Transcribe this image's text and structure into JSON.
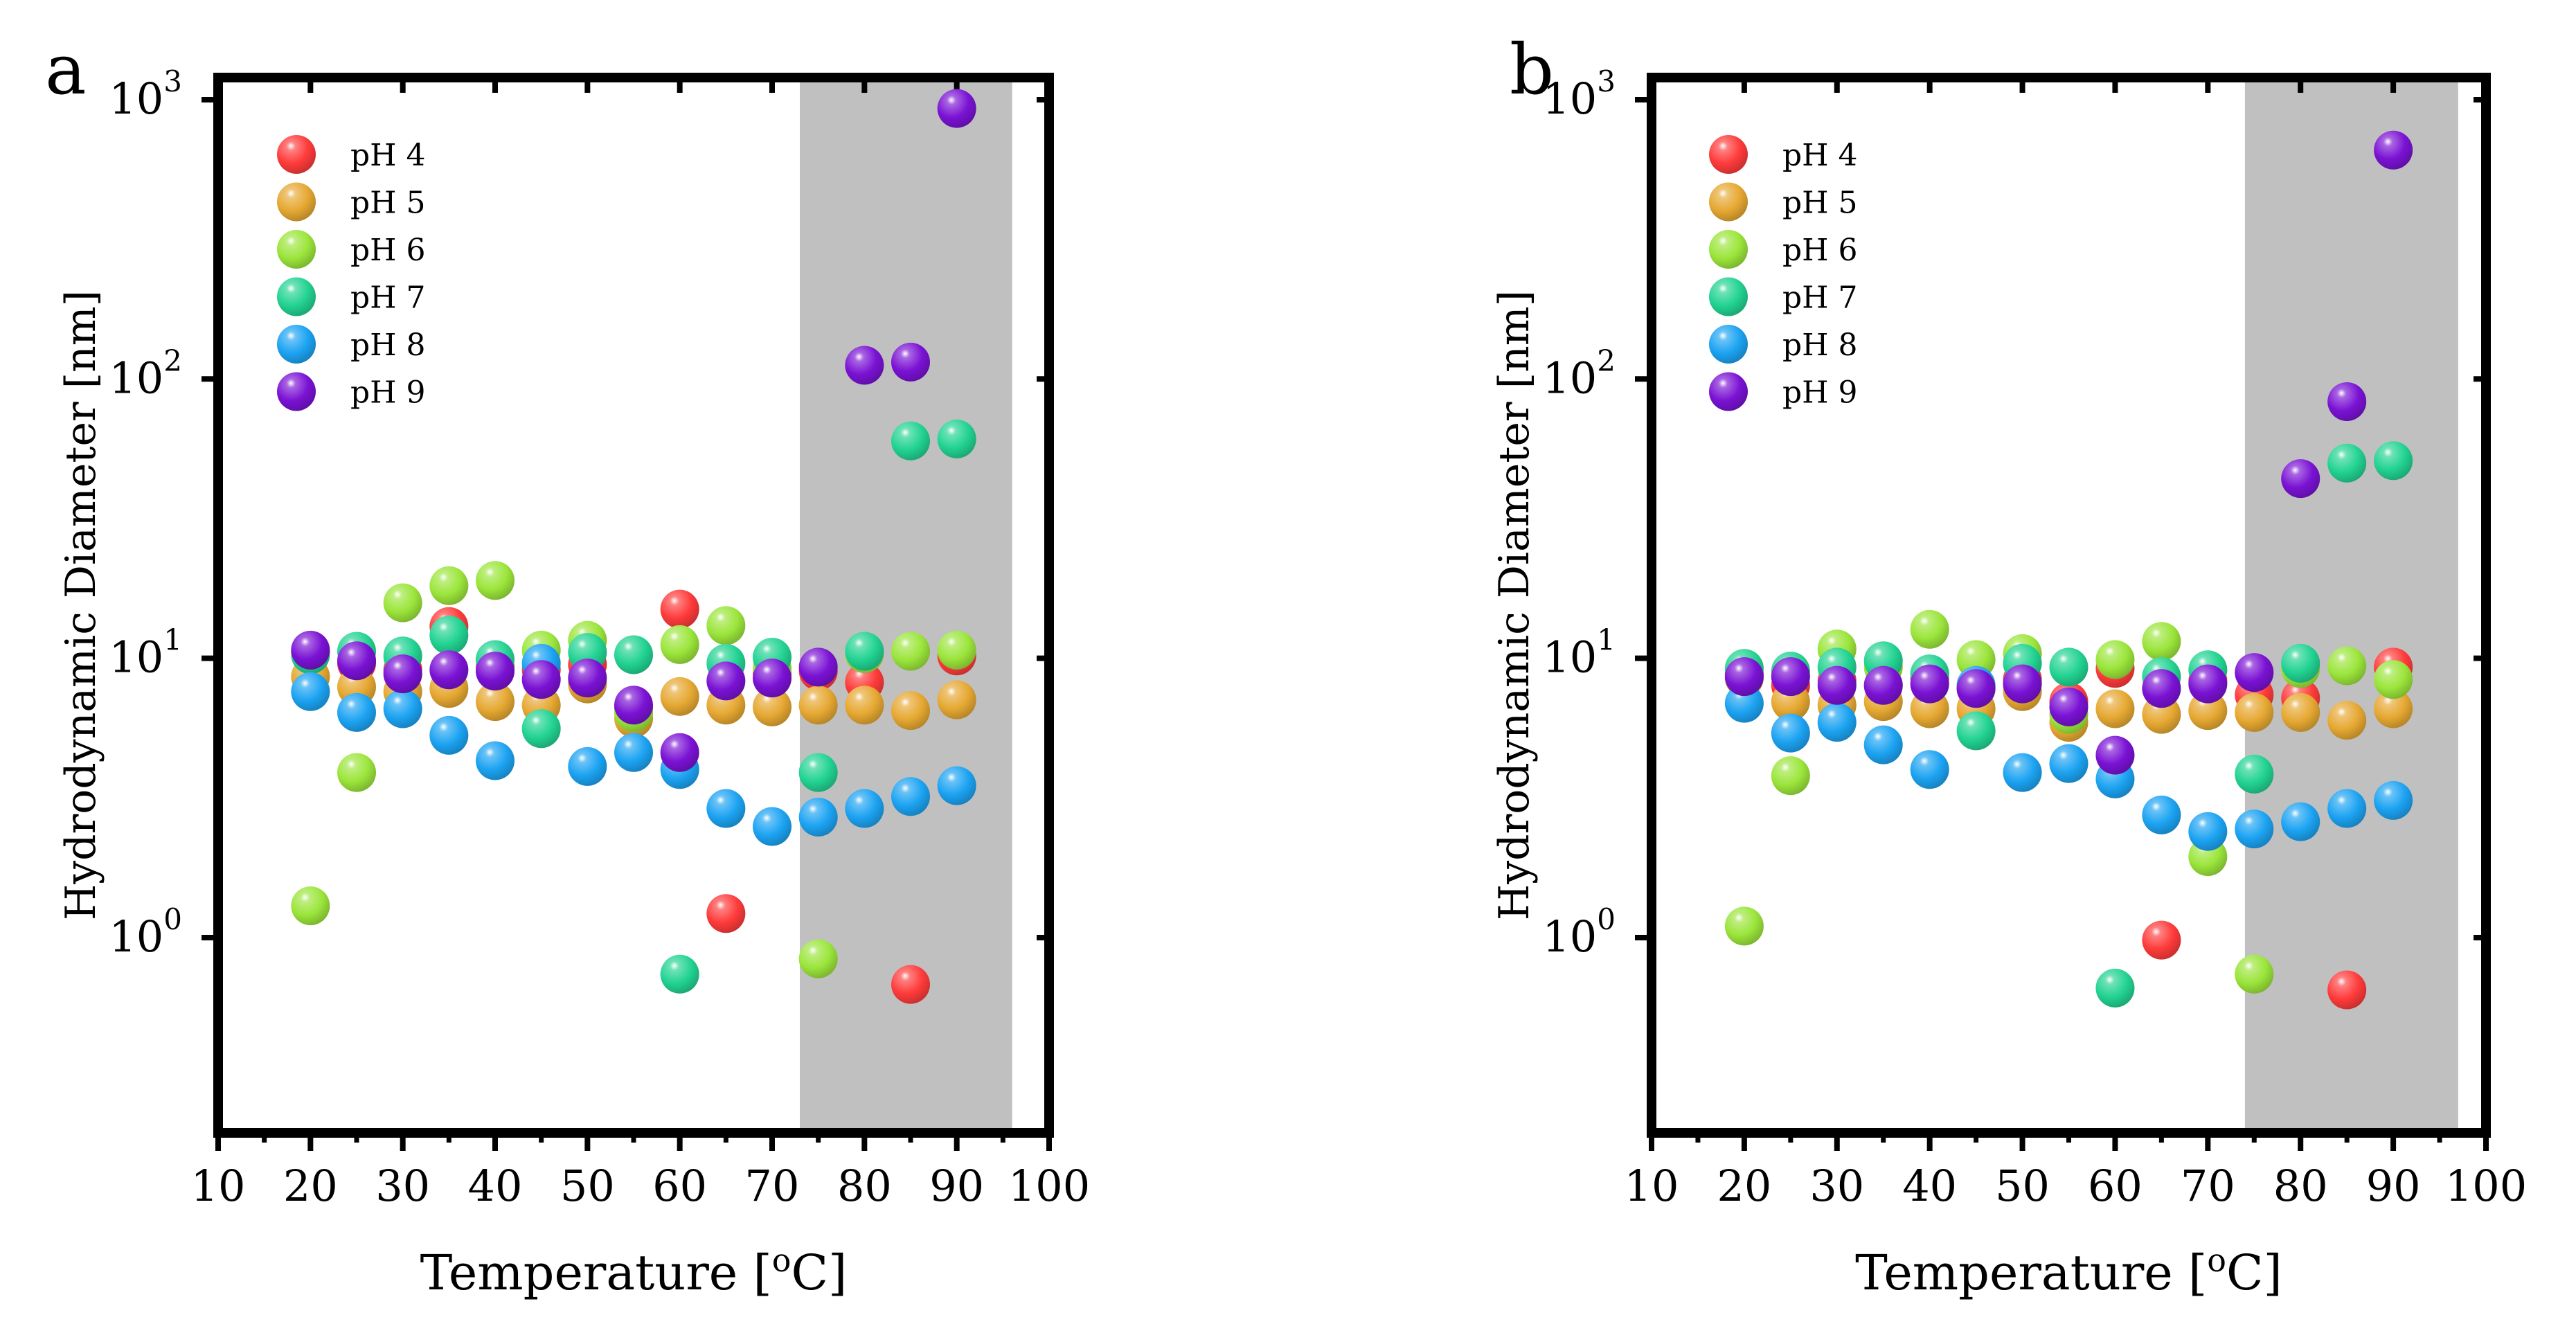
{
  "chart_data": [
    {
      "type": "scatter",
      "panel_label": "a",
      "xlabel": "Temperature [",
      "xlabel_sup": "o",
      "xlabel_unit": "C]",
      "ylabel": "Hydrodynamic Diameter [nm]",
      "xlim": [
        10,
        100
      ],
      "ylim": [
        0.2,
        1200
      ],
      "yscale": "log",
      "xticks": [
        10,
        20,
        30,
        40,
        50,
        60,
        70,
        80,
        90,
        100
      ],
      "yticks": [
        {
          "value": 1,
          "base": "10",
          "exp": "0"
        },
        {
          "value": 10,
          "base": "10",
          "exp": "1"
        },
        {
          "value": 100,
          "base": "10",
          "exp": "2"
        },
        {
          "value": 1000,
          "base": "10",
          "exp": "3"
        }
      ],
      "shaded_region": {
        "x_start": 73,
        "x_end": 96,
        "color": "#c0c0c0"
      },
      "legend_position": "top-left",
      "series": [
        {
          "name": "pH 4",
          "color": "#ff3b3b",
          "points": [
            [
              20,
              10.5
            ],
            [
              25,
              9.6
            ],
            [
              30,
              9.1
            ],
            [
              35,
              13
            ],
            [
              40,
              9.3
            ],
            [
              45,
              9.1
            ],
            [
              50,
              9.5
            ],
            [
              55,
              6.6
            ],
            [
              60,
              15
            ],
            [
              65,
              1.22
            ],
            [
              70,
              8.8
            ],
            [
              75,
              9.0
            ],
            [
              80,
              8.2
            ],
            [
              85,
              0.68
            ],
            [
              90,
              10.2
            ]
          ]
        },
        {
          "name": "pH 5",
          "color": "#e6a832",
          "points": [
            [
              20,
              8.6
            ],
            [
              25,
              7.9
            ],
            [
              30,
              7.6
            ],
            [
              35,
              7.8
            ],
            [
              40,
              7.0
            ],
            [
              45,
              6.8
            ],
            [
              50,
              8.1
            ],
            [
              55,
              6.1
            ],
            [
              60,
              7.3
            ],
            [
              65,
              6.8
            ],
            [
              70,
              6.7
            ],
            [
              75,
              6.8
            ],
            [
              80,
              6.8
            ],
            [
              85,
              6.5
            ],
            [
              90,
              7.1
            ]
          ]
        },
        {
          "name": "pH 6",
          "color": "#9be53b",
          "points": [
            [
              20,
              1.3
            ],
            [
              25,
              3.9
            ],
            [
              30,
              15.8
            ],
            [
              35,
              18.2
            ],
            [
              40,
              19
            ],
            [
              45,
              10.7
            ],
            [
              50,
              11.6
            ],
            [
              55,
              6.4
            ],
            [
              60,
              11.2
            ],
            [
              65,
              13.1
            ],
            [
              70,
              9.2
            ],
            [
              75,
              0.84
            ],
            [
              80,
              10.4
            ],
            [
              85,
              10.6
            ],
            [
              90,
              10.7
            ]
          ]
        },
        {
          "name": "pH 7",
          "color": "#22d392",
          "points": [
            [
              20,
              10.3
            ],
            [
              25,
              10.6
            ],
            [
              30,
              10.2
            ],
            [
              35,
              12.1
            ],
            [
              40,
              9.9
            ],
            [
              45,
              5.6
            ],
            [
              50,
              10.5
            ],
            [
              55,
              10.3
            ],
            [
              60,
              0.74
            ],
            [
              65,
              9.6
            ],
            [
              70,
              10.1
            ],
            [
              75,
              3.9
            ],
            [
              80,
              10.6
            ],
            [
              85,
              60
            ],
            [
              90,
              61
            ]
          ]
        },
        {
          "name": "pH 8",
          "color": "#1ca3f2",
          "points": [
            [
              20,
              7.6
            ],
            [
              25,
              6.4
            ],
            [
              30,
              6.6
            ],
            [
              35,
              5.3
            ],
            [
              40,
              4.3
            ],
            [
              45,
              9.6
            ],
            [
              50,
              4.1
            ],
            [
              55,
              4.6
            ],
            [
              60,
              4.0
            ],
            [
              65,
              2.9
            ],
            [
              70,
              2.5
            ],
            [
              75,
              2.7
            ],
            [
              80,
              2.9
            ],
            [
              85,
              3.2
            ],
            [
              90,
              3.5
            ]
          ]
        },
        {
          "name": "pH 9",
          "color": "#7a12d4",
          "points": [
            [
              20,
              10.7
            ],
            [
              25,
              9.8
            ],
            [
              30,
              8.8
            ],
            [
              35,
              9.1
            ],
            [
              40,
              9.0
            ],
            [
              45,
              8.4
            ],
            [
              50,
              8.5
            ],
            [
              55,
              6.8
            ],
            [
              60,
              4.6
            ],
            [
              65,
              8.3
            ],
            [
              70,
              8.5
            ],
            [
              75,
              9.3
            ],
            [
              80,
              112
            ],
            [
              85,
              115
            ],
            [
              90,
              930
            ]
          ]
        }
      ]
    },
    {
      "type": "scatter",
      "panel_label": "b",
      "xlabel": "Temperature [",
      "xlabel_sup": "o",
      "xlabel_unit": "C]",
      "ylabel": "Hydrodynamic Diameter [nm]",
      "xlim": [
        10,
        100
      ],
      "ylim": [
        0.2,
        1200
      ],
      "yscale": "log",
      "xticks": [
        10,
        20,
        30,
        40,
        50,
        60,
        70,
        80,
        90,
        100
      ],
      "yticks": [
        {
          "value": 1,
          "base": "10",
          "exp": "0"
        },
        {
          "value": 10,
          "base": "10",
          "exp": "1"
        },
        {
          "value": 100,
          "base": "10",
          "exp": "2"
        },
        {
          "value": 1000,
          "base": "10",
          "exp": "3"
        }
      ],
      "shaded_region": {
        "x_start": 74,
        "x_end": 97,
        "color": "#c0c0c0"
      },
      "legend_position": "top-left",
      "series": [
        {
          "name": "pH 4",
          "color": "#ff3b3b",
          "points": [
            [
              20,
              8.8
            ],
            [
              25,
              8.0
            ],
            [
              30,
              8.3
            ],
            [
              35,
              8.0
            ],
            [
              40,
              8.5
            ],
            [
              45,
              7.8
            ],
            [
              50,
              8.4
            ],
            [
              55,
              7.0
            ],
            [
              60,
              9.2
            ],
            [
              65,
              0.98
            ],
            [
              70,
              8.3
            ],
            [
              75,
              7.4
            ],
            [
              80,
              7.2
            ],
            [
              85,
              0.65
            ],
            [
              90,
              9.3
            ]
          ]
        },
        {
          "name": "pH 5",
          "color": "#e6a832",
          "points": [
            [
              20,
              8.5
            ],
            [
              25,
              7.0
            ],
            [
              30,
              6.8
            ],
            [
              35,
              7.0
            ],
            [
              40,
              6.6
            ],
            [
              45,
              6.6
            ],
            [
              50,
              7.6
            ],
            [
              55,
              5.9
            ],
            [
              60,
              6.6
            ],
            [
              65,
              6.3
            ],
            [
              70,
              6.5
            ],
            [
              75,
              6.4
            ],
            [
              80,
              6.4
            ],
            [
              85,
              6.0
            ],
            [
              90,
              6.6
            ]
          ]
        },
        {
          "name": "pH 6",
          "color": "#9be53b",
          "points": [
            [
              20,
              1.1
            ],
            [
              25,
              3.8
            ],
            [
              30,
              10.8
            ],
            [
              35,
              9.3
            ],
            [
              40,
              12.7
            ],
            [
              45,
              9.9
            ],
            [
              50,
              10.4
            ],
            [
              55,
              6.3
            ],
            [
              60,
              9.9
            ],
            [
              65,
              11.5
            ],
            [
              70,
              1.95
            ],
            [
              75,
              0.74
            ],
            [
              80,
              9.2
            ],
            [
              85,
              9.4
            ],
            [
              90,
              8.4
            ]
          ]
        },
        {
          "name": "pH 7",
          "color": "#22d392",
          "points": [
            [
              20,
              9.2
            ],
            [
              25,
              9.0
            ],
            [
              30,
              9.3
            ],
            [
              35,
              9.8
            ],
            [
              40,
              8.8
            ],
            [
              45,
              5.5
            ],
            [
              50,
              9.6
            ],
            [
              55,
              9.3
            ],
            [
              60,
              0.66
            ],
            [
              65,
              8.6
            ],
            [
              70,
              9.1
            ],
            [
              75,
              3.85
            ],
            [
              80,
              9.6
            ],
            [
              85,
              50
            ],
            [
              90,
              51
            ]
          ]
        },
        {
          "name": "pH 8",
          "color": "#1ca3f2",
          "points": [
            [
              20,
              6.9
            ],
            [
              25,
              5.4
            ],
            [
              30,
              5.9
            ],
            [
              35,
              4.9
            ],
            [
              40,
              4.0
            ],
            [
              45,
              8.0
            ],
            [
              50,
              3.9
            ],
            [
              55,
              4.2
            ],
            [
              60,
              3.7
            ],
            [
              65,
              2.75
            ],
            [
              70,
              2.4
            ],
            [
              75,
              2.45
            ],
            [
              80,
              2.6
            ],
            [
              85,
              2.9
            ],
            [
              90,
              3.1
            ]
          ]
        },
        {
          "name": "pH 9",
          "color": "#7a12d4",
          "points": [
            [
              20,
              8.6
            ],
            [
              25,
              8.6
            ],
            [
              30,
              8.0
            ],
            [
              35,
              8.0
            ],
            [
              40,
              8.1
            ],
            [
              45,
              7.8
            ],
            [
              50,
              8.1
            ],
            [
              55,
              6.7
            ],
            [
              60,
              4.5
            ],
            [
              65,
              7.8
            ],
            [
              70,
              8.1
            ],
            [
              75,
              8.9
            ],
            [
              80,
              44
            ],
            [
              85,
              83
            ],
            [
              90,
              660
            ]
          ]
        }
      ]
    }
  ]
}
